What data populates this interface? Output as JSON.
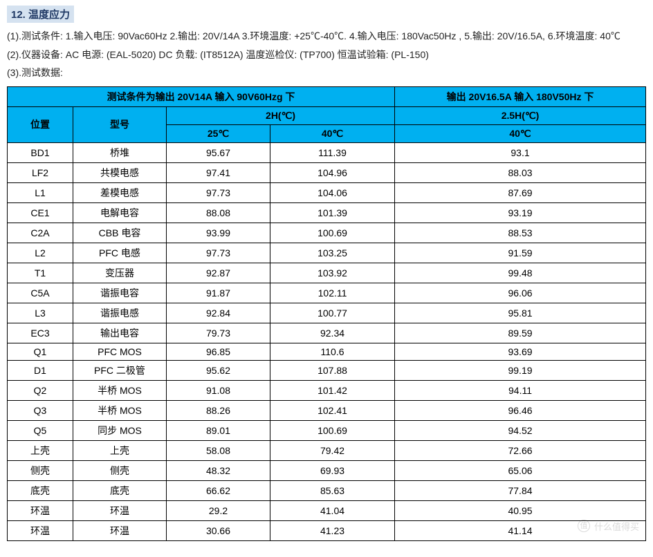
{
  "section": {
    "title": "12. 温度应力"
  },
  "desc": {
    "line1": "(1).测试条件:    1.输入电压: 90Vac60Hz      2.输出: 20V/14A      3.环境温度: +25℃-40℃. 4.输入电压: 180Vac50Hz  ,  5.输出: 20V/16.5A,  6.环境温度: 40℃",
    "line2": "(2).仪器设备:    AC 电源: (EAL-5020)    DC 负载: (IT8512A)    温度巡检仪: (TP700)    恒温试验箱: (PL-150)",
    "line3": "(3).测试数据:"
  },
  "table": {
    "colors": {
      "header_bg": "#00b0f0",
      "border": "#000000",
      "bg": "#ffffff"
    },
    "header": {
      "title_left": "测试条件为输出 20V14A 输入 90V60Hzg 下",
      "title_right": "输出 20V16.5A 输入 180V50Hz 下",
      "pos": "位置",
      "model": "型号",
      "h1": "2H(℃)",
      "h2": "2.5H(℃)",
      "c1": "25℃",
      "c2": "40℃",
      "c3": "40℃"
    },
    "rows": [
      {
        "pos": "BD1",
        "model": "桥堆",
        "v1": "95.67",
        "v2": "111.39",
        "v3": "93.1"
      },
      {
        "pos": "LF2",
        "model": "共模电感",
        "v1": "97.41",
        "v2": "104.96",
        "v3": "88.03"
      },
      {
        "pos": "L1",
        "model": "差模电感",
        "v1": "97.73",
        "v2": "104.06",
        "v3": "87.69"
      },
      {
        "pos": "CE1",
        "model": "电解电容",
        "v1": "88.08",
        "v2": "101.39",
        "v3": "93.19"
      },
      {
        "pos": "C2A",
        "model": "CBB 电容",
        "v1": "93.99",
        "v2": "100.69",
        "v3": "88.53"
      },
      {
        "pos": "L2",
        "model": "PFC 电感",
        "v1": "97.73",
        "v2": "103.25",
        "v3": "91.59"
      },
      {
        "pos": "T1",
        "model": "变压器",
        "v1": "92.87",
        "v2": "103.92",
        "v3": "99.48"
      },
      {
        "pos": "C5A",
        "model": "谐振电容",
        "v1": "91.87",
        "v2": "102.11",
        "v3": "96.06"
      },
      {
        "pos": "L3",
        "model": "谐振电感",
        "v1": "92.84",
        "v2": "100.77",
        "v3": "95.81"
      },
      {
        "pos": "EC3",
        "model": "输出电容",
        "v1": "79.73",
        "v2": "92.34",
        "v3": "89.59"
      },
      {
        "pos": "Q1",
        "model": "PFC MOS",
        "v1": "96.85",
        "v2": "110.6",
        "v3": "93.69"
      },
      {
        "pos": "D1",
        "model": "PFC 二极管",
        "v1": "95.62",
        "v2": "107.88",
        "v3": "99.19"
      },
      {
        "pos": "Q2",
        "model": "半桥 MOS",
        "v1": "91.08",
        "v2": "101.42",
        "v3": "94.11"
      },
      {
        "pos": "Q3",
        "model": "半桥 MOS",
        "v1": "88.26",
        "v2": "102.41",
        "v3": "96.46"
      },
      {
        "pos": "Q5",
        "model": "同步 MOS",
        "v1": "89.01",
        "v2": "100.69",
        "v3": "94.52"
      },
      {
        "pos": "上壳",
        "model": "上壳",
        "v1": "58.08",
        "v2": "79.42",
        "v3": "72.66"
      },
      {
        "pos": "侧壳",
        "model": "侧壳",
        "v1": "48.32",
        "v2": "69.93",
        "v3": "65.06"
      },
      {
        "pos": "底壳",
        "model": "底壳",
        "v1": "66.62",
        "v2": "85.63",
        "v3": "77.84"
      },
      {
        "pos": "环温",
        "model": "环温",
        "v1": "29.2",
        "v2": "41.04",
        "v3": "40.95"
      },
      {
        "pos": "环温",
        "model": "环温",
        "v1": "30.66",
        "v2": "41.23",
        "v3": "41.14"
      }
    ]
  },
  "watermark": {
    "text": "什么值得买",
    "icon": "值"
  }
}
